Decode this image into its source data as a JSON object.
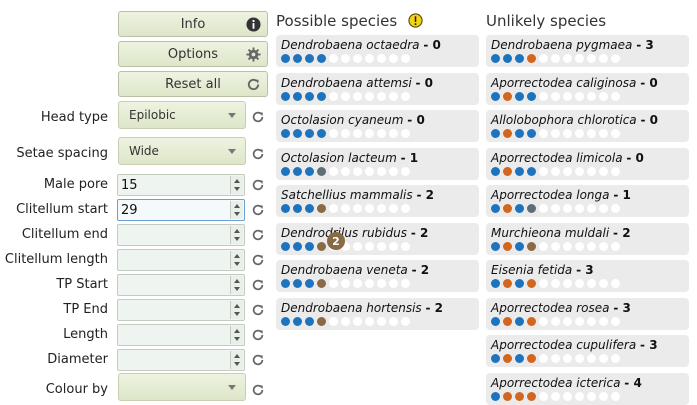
{
  "buttons": {
    "info": "Info",
    "options": "Options",
    "reset_all": "Reset all"
  },
  "fields": {
    "head_type": {
      "label": "Head type",
      "value": "Epilobic"
    },
    "setae_spacing": {
      "label": "Setae spacing",
      "value": "Wide"
    },
    "male_pore": {
      "label": "Male pore",
      "value": "15"
    },
    "clitellum_start": {
      "label": "Clitellum start",
      "value": "29"
    },
    "clitellum_end": {
      "label": "Clitellum end",
      "value": ""
    },
    "clitellum_length": {
      "label": "Clitellum length",
      "value": ""
    },
    "tp_start": {
      "label": "TP Start",
      "value": ""
    },
    "tp_end": {
      "label": "TP End",
      "value": ""
    },
    "length": {
      "label": "Length",
      "value": ""
    },
    "diameter": {
      "label": "Diameter",
      "value": ""
    },
    "colour_by": {
      "label": "Colour by",
      "value": ""
    }
  },
  "possible": {
    "title": "Possible species",
    "warning_icon": "warning-exclamation-icon",
    "items": [
      {
        "name": "Dendrobaena octaedra",
        "score": "- 0",
        "dots": [
          "blue",
          "blue",
          "blue",
          "blue",
          "empty",
          "empty",
          "empty",
          "empty",
          "empty",
          "empty",
          "empty"
        ]
      },
      {
        "name": "Dendrobaena attemsi",
        "score": "- 0",
        "dots": [
          "blue",
          "blue",
          "blue",
          "blue",
          "empty",
          "empty",
          "empty",
          "empty",
          "empty",
          "empty",
          "empty"
        ]
      },
      {
        "name": "Octolasion cyaneum",
        "score": "- 0",
        "dots": [
          "blue",
          "blue",
          "blue",
          "blue",
          "empty",
          "empty",
          "empty",
          "empty",
          "empty",
          "empty",
          "empty"
        ]
      },
      {
        "name": "Octolasion lacteum",
        "score": "- 1",
        "dots": [
          "blue",
          "blue",
          "blue",
          "grey",
          "empty",
          "empty",
          "empty",
          "empty",
          "empty",
          "empty",
          "empty"
        ]
      },
      {
        "name": "Satchellius mammalis",
        "score": "- 2",
        "dots": [
          "blue",
          "blue",
          "blue",
          "brown",
          "empty",
          "empty",
          "empty",
          "empty",
          "empty",
          "empty",
          "empty"
        ]
      },
      {
        "name": "Dendrodrilus rubidus",
        "score": "- 2",
        "dots": [
          "blue",
          "blue",
          "blue",
          "brown",
          "empty",
          "empty",
          "empty",
          "empty",
          "empty",
          "empty",
          "empty"
        ]
      },
      {
        "name": "Dendrobaena veneta",
        "score": "- 2",
        "dots": [
          "blue",
          "blue",
          "blue",
          "brown",
          "empty",
          "empty",
          "empty",
          "empty",
          "empty",
          "empty",
          "empty"
        ]
      },
      {
        "name": "Dendrobaena hortensis",
        "score": "- 2",
        "dots": [
          "blue",
          "blue",
          "blue",
          "brown",
          "empty",
          "empty",
          "empty",
          "empty",
          "empty",
          "empty",
          "empty"
        ]
      }
    ],
    "marker": "2"
  },
  "unlikely": {
    "title": "Unlikely species",
    "items": [
      {
        "name": "Dendrobaena pygmaea",
        "score": "- 3",
        "dots": [
          "blue",
          "blue",
          "blue",
          "orange",
          "empty",
          "empty",
          "empty",
          "empty",
          "empty",
          "empty",
          "empty"
        ]
      },
      {
        "name": "Aporrectodea caliginosa",
        "score": "- 0",
        "dots": [
          "blue",
          "orange",
          "blue",
          "blue",
          "empty",
          "empty",
          "empty",
          "empty",
          "empty",
          "empty",
          "empty"
        ]
      },
      {
        "name": "Allolobophora chlorotica",
        "score": "- 0",
        "dots": [
          "blue",
          "orange",
          "blue",
          "blue",
          "empty",
          "empty",
          "empty",
          "empty",
          "empty",
          "empty",
          "empty"
        ]
      },
      {
        "name": "Aporrectodea limicola",
        "score": "- 0",
        "dots": [
          "blue",
          "orange",
          "blue",
          "blue",
          "empty",
          "empty",
          "empty",
          "empty",
          "empty",
          "empty",
          "empty"
        ]
      },
      {
        "name": "Aporrectodea longa",
        "score": "- 1",
        "dots": [
          "blue",
          "orange",
          "blue",
          "grey",
          "empty",
          "empty",
          "empty",
          "empty",
          "empty",
          "empty",
          "empty"
        ]
      },
      {
        "name": "Murchieona muldali",
        "score": "- 2",
        "dots": [
          "blue",
          "orange",
          "blue",
          "brown",
          "empty",
          "empty",
          "empty",
          "empty",
          "empty",
          "empty",
          "empty"
        ]
      },
      {
        "name": "Eisenia fetida",
        "score": "- 3",
        "dots": [
          "blue",
          "orange",
          "blue",
          "orange",
          "empty",
          "empty",
          "empty",
          "empty",
          "empty",
          "empty",
          "empty"
        ]
      },
      {
        "name": "Aporrectodea rosea",
        "score": "- 3",
        "dots": [
          "blue",
          "orange",
          "blue",
          "orange",
          "empty",
          "empty",
          "empty",
          "empty",
          "empty",
          "empty",
          "empty"
        ]
      },
      {
        "name": "Aporrectodea cupulifera",
        "score": "- 3",
        "dots": [
          "blue",
          "orange",
          "blue",
          "orange",
          "empty",
          "empty",
          "empty",
          "empty",
          "empty",
          "empty",
          "empty"
        ]
      },
      {
        "name": "Aporrectodea icterica",
        "score": "- 4",
        "dots": [
          "blue",
          "orange",
          "orange",
          "orange",
          "empty",
          "empty",
          "empty",
          "empty",
          "empty",
          "empty",
          "empty"
        ]
      }
    ]
  },
  "colors": {
    "blue": "#1e73be",
    "orange": "#d3661e",
    "brown": "#8a6a44",
    "grey": "#5e6e78",
    "card_bg": "#ebebeb",
    "button_bg": "#e4ebd2",
    "warning": "#f2d21b"
  }
}
